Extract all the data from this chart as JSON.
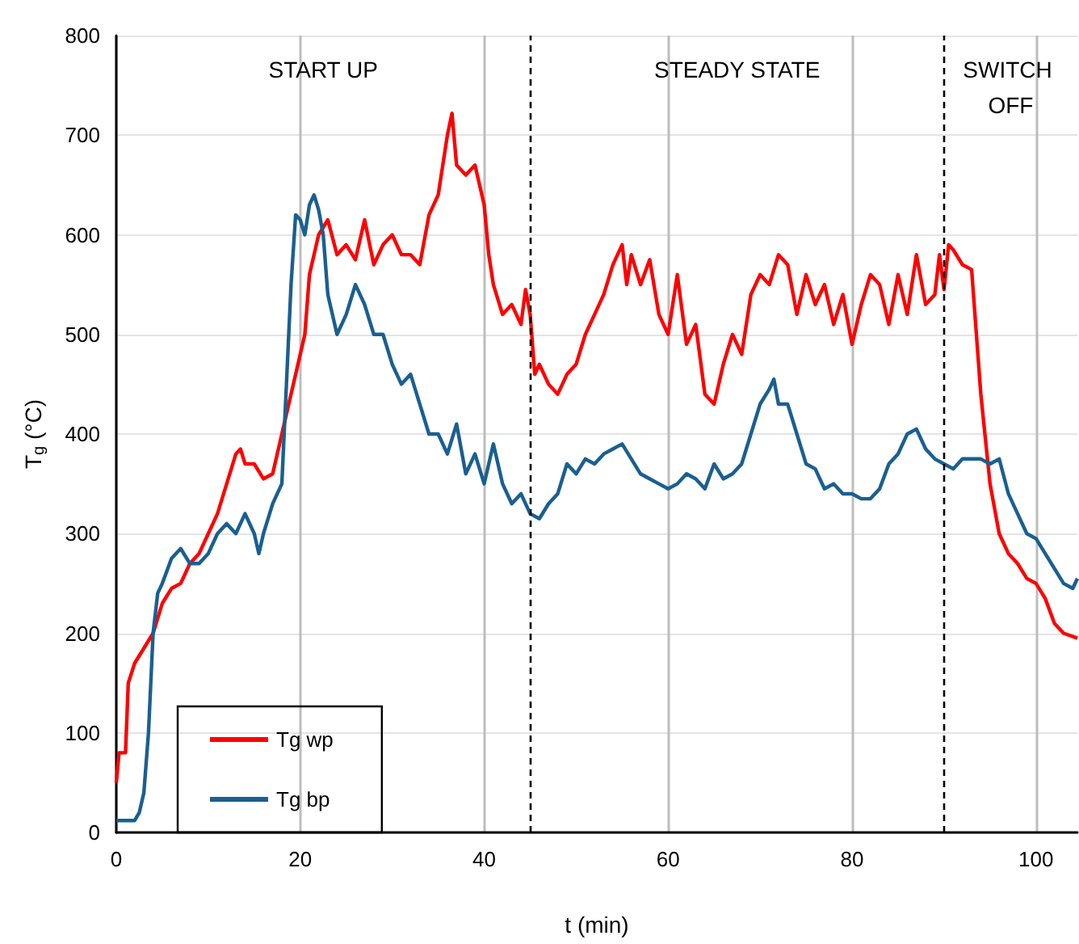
{
  "chart_data": {
    "type": "line",
    "xlabel": "t (min)",
    "ylabel": "T$_{g}$ (°C)",
    "xlim": [
      0,
      104.5
    ],
    "xticks": [
      0,
      20,
      40,
      60,
      80,
      100
    ],
    "ylim": [
      0,
      800
    ],
    "yticks": [
      0,
      100,
      200,
      300,
      400,
      500,
      600,
      700,
      800
    ],
    "grid": true,
    "legend": "bottom left",
    "ref_lines": [
      {
        "axis": "x",
        "value": 45,
        "color": "#000000",
        "line_style": "dashed"
      },
      {
        "axis": "x",
        "value": 90,
        "color": "#000000",
        "line_style": "dashed"
      }
    ],
    "annotations": [
      "START UP",
      "STEADY STATE",
      "SWITCH OFF"
    ],
    "series": [
      {
        "name": "Tg wp",
        "color": "#ff0000",
        "x": [
          0,
          0.3,
          1,
          1.3,
          2,
          3,
          4,
          5,
          6,
          7,
          8,
          9,
          10,
          11,
          12,
          13,
          13.5,
          14,
          15,
          16,
          17,
          18,
          19,
          20,
          20.5,
          21,
          22,
          23,
          24,
          25,
          26,
          27,
          28,
          29,
          30,
          31,
          32,
          33,
          34,
          35,
          36,
          36.5,
          37,
          38,
          39,
          40,
          40.5,
          41,
          42,
          43,
          44,
          44.5,
          45,
          45.5,
          46,
          47,
          48,
          49,
          50,
          51,
          52,
          53,
          54,
          55,
          55.5,
          56,
          57,
          58,
          59,
          60,
          61,
          62,
          63,
          64,
          65,
          66,
          67,
          68,
          69,
          70,
          71,
          72,
          73,
          74,
          75,
          76,
          77,
          78,
          79,
          80,
          81,
          82,
          83,
          84,
          85,
          86,
          87,
          88,
          89,
          89.5,
          90,
          90.5,
          91,
          92,
          93,
          94,
          95,
          96,
          97,
          98,
          99,
          100,
          101,
          102,
          103,
          104.5
        ],
        "values": [
          50,
          80,
          80,
          150,
          170,
          185,
          200,
          230,
          245,
          250,
          270,
          280,
          300,
          320,
          350,
          380,
          385,
          370,
          370,
          355,
          360,
          400,
          440,
          480,
          500,
          560,
          600,
          615,
          580,
          590,
          575,
          615,
          570,
          590,
          600,
          580,
          580,
          570,
          620,
          640,
          700,
          722,
          670,
          660,
          670,
          630,
          580,
          550,
          520,
          530,
          510,
          545,
          520,
          460,
          470,
          450,
          440,
          460,
          470,
          500,
          520,
          540,
          570,
          590,
          550,
          580,
          550,
          575,
          520,
          500,
          560,
          490,
          510,
          440,
          430,
          470,
          500,
          480,
          540,
          560,
          550,
          580,
          570,
          520,
          560,
          530,
          550,
          510,
          540,
          490,
          530,
          560,
          550,
          510,
          560,
          520,
          580,
          530,
          540,
          580,
          545,
          590,
          585,
          570,
          565,
          440,
          350,
          300,
          280,
          270,
          255,
          250,
          235,
          210,
          200,
          195
        ]
      },
      {
        "name": "Tg bp",
        "color": "#1a5f91",
        "x": [
          0,
          1,
          2,
          2.5,
          3,
          3.5,
          4,
          4.5,
          5,
          6,
          7,
          8,
          9,
          10,
          11,
          12,
          13,
          14,
          15,
          15.5,
          16,
          17,
          18,
          18.5,
          19,
          19.5,
          20,
          20.5,
          21,
          21.5,
          22,
          22.5,
          23,
          24,
          25,
          26,
          27,
          28,
          29,
          30,
          31,
          32,
          33,
          34,
          35,
          36,
          37,
          38,
          39,
          40,
          41,
          42,
          43,
          44,
          45,
          46,
          47,
          48,
          49,
          50,
          51,
          52,
          53,
          54,
          55,
          56,
          57,
          58,
          59,
          60,
          61,
          62,
          63,
          64,
          65,
          66,
          67,
          68,
          69,
          70,
          71,
          71.5,
          72,
          73,
          74,
          75,
          76,
          77,
          78,
          79,
          80,
          81,
          82,
          83,
          84,
          85,
          86,
          87,
          88,
          89,
          90,
          91,
          92,
          93,
          94,
          95,
          96,
          97,
          98,
          99,
          100,
          101,
          102,
          103,
          104,
          104.5
        ],
        "values": [
          12,
          12,
          12,
          20,
          40,
          100,
          200,
          240,
          250,
          275,
          285,
          270,
          270,
          280,
          300,
          310,
          300,
          320,
          300,
          280,
          300,
          330,
          350,
          450,
          550,
          620,
          615,
          600,
          630,
          640,
          625,
          600,
          540,
          500,
          520,
          550,
          530,
          500,
          500,
          470,
          450,
          460,
          430,
          400,
          400,
          380,
          410,
          360,
          380,
          350,
          390,
          350,
          330,
          340,
          320,
          315,
          330,
          340,
          370,
          360,
          375,
          370,
          380,
          385,
          390,
          375,
          360,
          355,
          350,
          345,
          350,
          360,
          355,
          345,
          370,
          355,
          360,
          370,
          400,
          430,
          445,
          455,
          430,
          430,
          400,
          370,
          365,
          345,
          350,
          340,
          340,
          335,
          335,
          345,
          370,
          380,
          400,
          405,
          385,
          375,
          370,
          365,
          375,
          375,
          375,
          370,
          375,
          340,
          320,
          300,
          295,
          280,
          265,
          250,
          245,
          255
        ]
      }
    ]
  }
}
